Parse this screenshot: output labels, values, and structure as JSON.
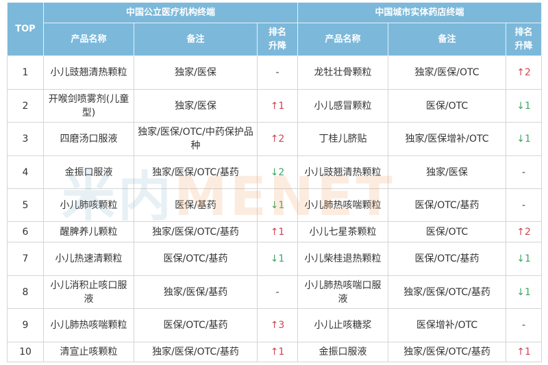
{
  "header": {
    "top_label": "TOP",
    "group_left": "中国公立医疗机构终端",
    "group_right": "中国城市实体药店终端",
    "col_name": "产品名称",
    "col_note": "备注",
    "col_rank": "排名升降"
  },
  "watermark": {
    "part1": "米内",
    "part2": "MENET"
  },
  "colors": {
    "header_bg": "#7cb8da",
    "up": "#d0434e",
    "down": "#3aa760"
  },
  "rows": [
    {
      "top": "1",
      "l_name": "小儿豉翘清热颗粒",
      "l_note": "独家/医保",
      "l_rank": "-",
      "r_name": "龙牡壮骨颗粒",
      "r_note": "独家/医保/OTC",
      "r_rank": "↑2"
    },
    {
      "top": "2",
      "l_name": "开喉剑喷雾剂(儿童型)",
      "l_note": "独家/医保",
      "l_rank": "↑1",
      "r_name": "小儿感冒颗粒",
      "r_note": "医保/OTC",
      "r_rank": "↓1"
    },
    {
      "top": "3",
      "l_name": "四磨汤口服液",
      "l_note": "独家/医保/OTC/中药保护品种",
      "l_rank": "↑2",
      "r_name": "丁桂儿脐贴",
      "r_note": "独家/医保增补/OTC",
      "r_rank": "↓1"
    },
    {
      "top": "4",
      "l_name": "金振口服液",
      "l_note": "独家/医保/OTC/基药",
      "l_rank": "↓2",
      "r_name": "小儿豉翘清热颗粒",
      "r_note": "独家/医保",
      "r_rank": "-"
    },
    {
      "top": "5",
      "l_name": "小儿肺咳颗粒",
      "l_note": "医保/基药",
      "l_rank": "↓1",
      "r_name": "小儿肺热咳喘颗粒",
      "r_note": "医保/OTC/基药",
      "r_rank": "-"
    },
    {
      "top": "6",
      "l_name": "醒脾养儿颗粒",
      "l_note": "独家/医保/OTC/基药",
      "l_rank": "↑1",
      "r_name": "小儿七星茶颗粒",
      "r_note": "医保/OTC",
      "r_rank": "↑2"
    },
    {
      "top": "7",
      "l_name": "小儿热速清颗粒",
      "l_note": "医保/OTC/基药",
      "l_rank": "↓1",
      "r_name": "小儿柴桂退热颗粒",
      "r_note": "医保/OTC/基药",
      "r_rank": "↓1"
    },
    {
      "top": "8",
      "l_name": "小儿消积止咳口服液",
      "l_note": "独家/医保/基药",
      "l_rank": "-",
      "r_name": "小儿肺热咳喘口服液",
      "r_note": "独家/医保/OTC/基药",
      "r_rank": "↓1"
    },
    {
      "top": "9",
      "l_name": "小儿肺热咳喘颗粒",
      "l_note": "医保/OTC/基药",
      "l_rank": "↑3",
      "r_name": "小儿止咳糖浆",
      "r_note": "医保增补/OTC",
      "r_rank": "-"
    },
    {
      "top": "10",
      "l_name": "清宣止咳颗粒",
      "l_note": "独家/医保/OTC/基药",
      "l_rank": "↑1",
      "r_name": "金振口服液",
      "r_note": "独家/医保/OTC/基药",
      "r_rank": "↑1"
    }
  ]
}
